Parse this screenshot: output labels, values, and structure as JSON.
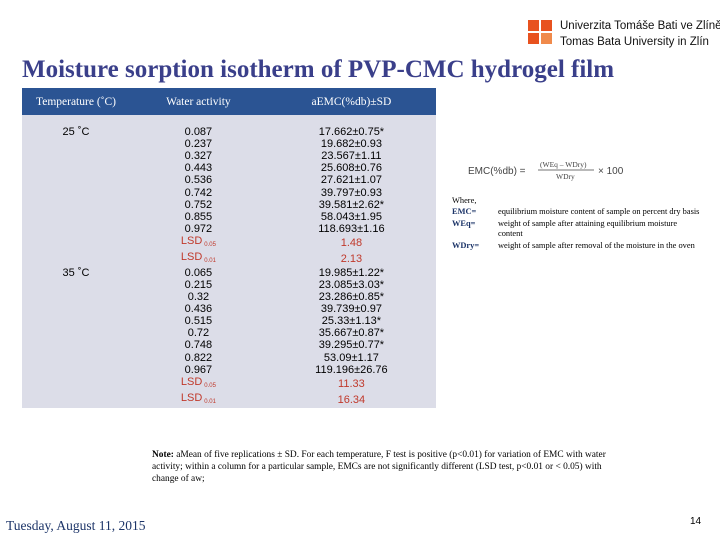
{
  "header": {
    "university_line1": "Univerzita Tomáše Bati ve Zlíně",
    "university_line2": "Tomas Bata University in Zlín",
    "title": "Moisture sorption isotherm of PVP-CMC hydrogel film"
  },
  "table": {
    "headers": [
      "Temperature (˚C)",
      "Water activity",
      "aEMC(%db)±SD"
    ],
    "groups": [
      {
        "temperature": "25 ˚C",
        "rows": [
          [
            "0.087",
            "17.662±0.75*"
          ],
          [
            "0.237",
            "19.682±0.93"
          ],
          [
            "0.327",
            "23.567±1.11"
          ],
          [
            "0.443",
            "25.608±0.76"
          ],
          [
            "0.536",
            "27.621±1.07"
          ],
          [
            "0.742",
            "39.797±0.93"
          ],
          [
            "0.752",
            "39.581±2.62*"
          ],
          [
            "0.855",
            "58.043±1.95"
          ],
          [
            "0.972",
            "118.693±1.16"
          ]
        ],
        "lsd": [
          {
            "label": "LSD",
            "sub": "0.05",
            "value": "1.48"
          },
          {
            "label": "LSD",
            "sub": "0.01",
            "value": "2.13"
          }
        ]
      },
      {
        "temperature": "35 ˚C",
        "rows": [
          [
            "0.065",
            "19.985±1.22*"
          ],
          [
            "0.215",
            "23.085±3.03*"
          ],
          [
            "0.32",
            "23.286±0.85*"
          ],
          [
            "0.436",
            "39.739±0.97"
          ],
          [
            "0.515",
            "25.33±1.13*"
          ],
          [
            "0.72",
            "35.667±0.87*"
          ],
          [
            "0.748",
            "39.295±0.77*"
          ],
          [
            "0.822",
            "53.09±1.17"
          ],
          [
            "0.967",
            "119.196±26.76"
          ]
        ],
        "lsd": [
          {
            "label": "LSD",
            "sub": "0.05",
            "value": "11.33"
          },
          {
            "label": "LSD",
            "sub": "0.01",
            "value": "16.34"
          }
        ]
      }
    ]
  },
  "formula": {
    "lhs": "EMC(%db) =",
    "numerator": "(WEq – WDry)",
    "denominator": "WDry",
    "multiplier": "× 100"
  },
  "legend": {
    "where": "Where,",
    "items": [
      {
        "term": "EMC=",
        "text": "equilibrium moisture content of sample on percent dry basis"
      },
      {
        "term": "WEq=",
        "text": "weight of sample after attaining equilibrium moisture content"
      },
      {
        "term": "WDry=",
        "text": "weight of sample after removal of the moisture in the oven"
      }
    ]
  },
  "note": {
    "label": "Note:",
    "text": "aMean of five replications ± SD. For each temperature, F test is positive (p<0.01) for variation of EMC with water activity; within a column for a particular sample, EMCs are not significantly different (LSD test, p<0.01 or < 0.05) with change of aw;"
  },
  "footer": {
    "date": "Tuesday, August 11, 2015",
    "page": "14"
  },
  "colors": {
    "title": "#3a3f8a",
    "table_header": "#2b5493",
    "table_body": "#dcdde8",
    "lsd": "#c0392b",
    "logo": "#e8521f"
  }
}
